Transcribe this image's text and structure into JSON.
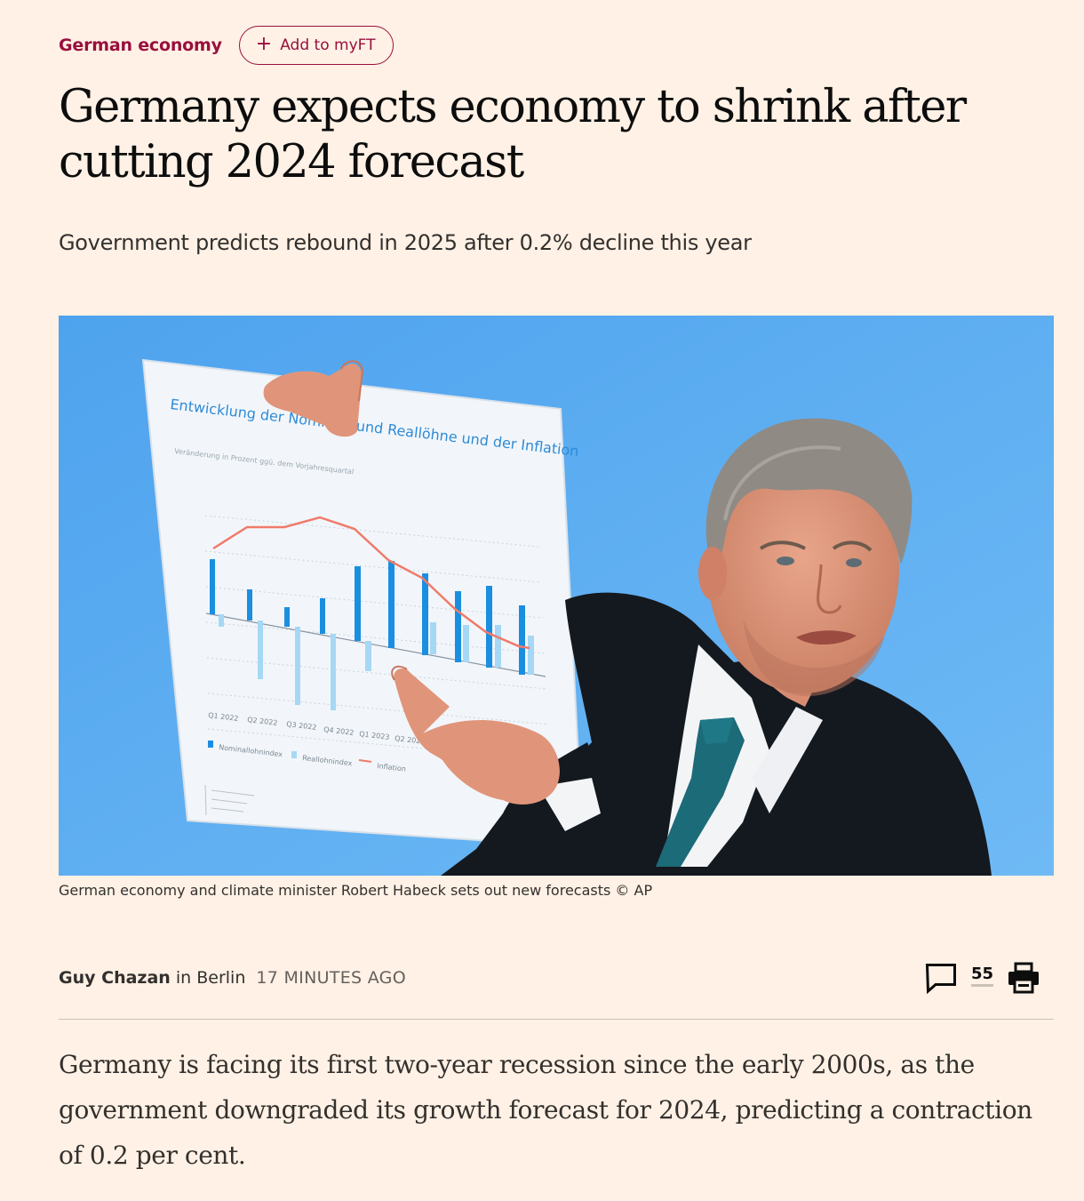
{
  "topic": {
    "label": "German economy",
    "myft_plus": "+",
    "myft_label": "Add to myFT"
  },
  "headline": "Germany expects economy to shrink after cutting 2024 forecast",
  "standfirst": "Government predicts rebound in 2025 after 0.2% decline this year",
  "image": {
    "board_title": "Entwicklung der Nominal- und Reallöhne und der Inflation",
    "board_subtitle": "Veränderung in Prozent ggü. dem Vorjahresquartal",
    "board_quarters": [
      "Q1 2022",
      "Q2 2022",
      "Q3 2022",
      "Q4 2022",
      "Q1 2023",
      "Q2 202"
    ],
    "board_legend": [
      "Nominallohnindex",
      "Reallohnindex",
      "Inflation"
    ],
    "colors": {
      "background": "#5aaaf0",
      "nominal_bar": "#1a8ee0",
      "real_bar": "#a6d8f5",
      "inflation_line": "#f07a6a"
    }
  },
  "caption": "German economy and climate minister Robert Habeck sets out new forecasts © AP",
  "byline": {
    "author": "Guy Chazan",
    "location": "in Berlin",
    "timestamp": "17 MINUTES AGO"
  },
  "actions": {
    "comment_icon": "speech-bubble-icon",
    "comment_count": "55",
    "print_icon": "printer-icon"
  },
  "body": "Germany is facing its first two-year recession since the early 2000s, as the government downgraded its growth forecast for 2024, predicting a contraction of 0.2 per cent."
}
